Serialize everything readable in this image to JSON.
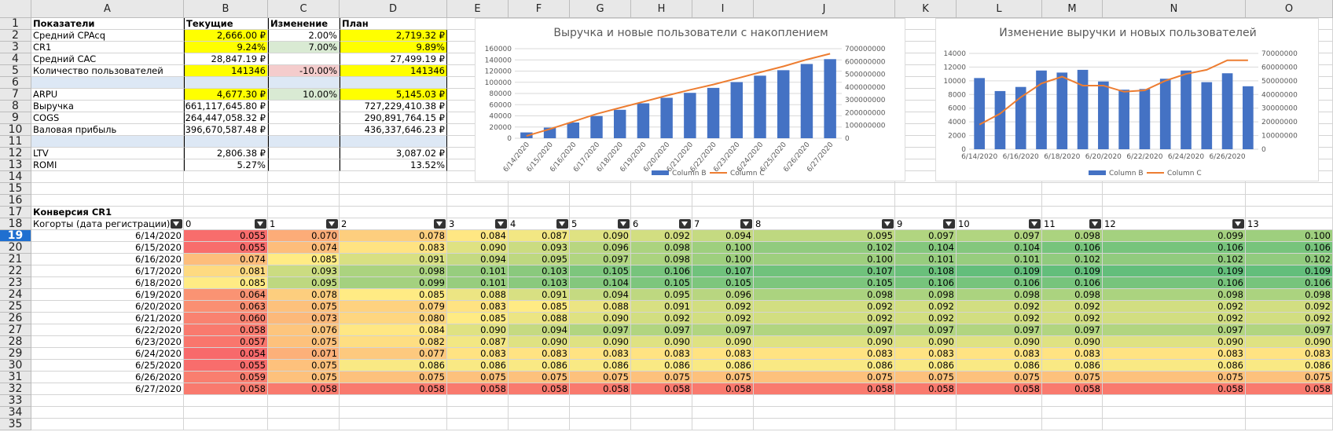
{
  "columns": [
    "A",
    "B",
    "C",
    "D",
    "E",
    "F",
    "G",
    "H",
    "I",
    "J",
    "K",
    "L",
    "M",
    "N",
    "O"
  ],
  "rows": [
    "1",
    "2",
    "3",
    "4",
    "5",
    "6",
    "7",
    "8",
    "9",
    "10",
    "11",
    "12",
    "13",
    "14",
    "15",
    "16",
    "17",
    "18",
    "19",
    "20",
    "21",
    "22",
    "23",
    "24",
    "25",
    "26",
    "27",
    "28",
    "29",
    "30",
    "31",
    "32",
    "33",
    "34",
    "35"
  ],
  "selected_row": "19",
  "summary": {
    "headers": [
      "Показатели",
      "Текущие",
      "Изменение",
      "План"
    ],
    "rows": [
      {
        "label": "Средний CPAcq",
        "current": "2,666.00 ₽",
        "change": "2.00%",
        "plan": "2,719.32 ₽"
      },
      {
        "label": "CR1",
        "current": "9.24%",
        "change": "7.00%",
        "plan": "9.89%"
      },
      {
        "label": "Средний CAC",
        "current": "28,847.19 ₽",
        "change": "",
        "plan": "27,499.19 ₽"
      },
      {
        "label": "Количество пользователей",
        "current": "141346",
        "change": "-10.00%",
        "plan": "141346"
      },
      {
        "label": "",
        "current": "",
        "change": "",
        "plan": ""
      },
      {
        "label": "ARPU",
        "current": "4,677.30 ₽",
        "change": "10.00%",
        "plan": "5,145.03 ₽"
      },
      {
        "label": "Выручка",
        "current": "661,117,645.80 ₽",
        "change": "",
        "plan": "727,229,410.38 ₽"
      },
      {
        "label": "COGS",
        "current": "264,447,058.32 ₽",
        "change": "",
        "plan": "290,891,764.15 ₽"
      },
      {
        "label": "Валовая прибыль",
        "current": "396,670,587.48 ₽",
        "change": "",
        "plan": "436,337,646.23 ₽"
      },
      {
        "label": "",
        "current": "",
        "change": "",
        "plan": ""
      },
      {
        "label": "LTV",
        "current": "2,806.38 ₽",
        "change": "",
        "plan": "3,087.02 ₽"
      },
      {
        "label": "ROMI",
        "current": "5.27%",
        "change": "",
        "plan": "13.52%"
      }
    ]
  },
  "conversion": {
    "title": "Конверсия CR1",
    "cohort_header": "Когорты (дата регистрации)",
    "period_headers": [
      "0",
      "1",
      "2",
      "3",
      "4",
      "5",
      "6",
      "7",
      "8",
      "9",
      "10",
      "11",
      "12",
      "13"
    ],
    "dates": [
      "6/14/2020",
      "6/15/2020",
      "6/16/2020",
      "6/17/2020",
      "6/18/2020",
      "6/19/2020",
      "6/20/2020",
      "6/21/2020",
      "6/22/2020",
      "6/23/2020",
      "6/24/2020",
      "6/25/2020",
      "6/26/2020",
      "6/27/2020"
    ],
    "values": [
      [
        "0.055",
        "0.070",
        "0.078",
        "0.084",
        "0.087",
        "0.090",
        "0.092",
        "0.094",
        "0.095",
        "0.097",
        "0.097",
        "0.098",
        "0.099",
        "0.100"
      ],
      [
        "0.055",
        "0.074",
        "0.083",
        "0.090",
        "0.093",
        "0.096",
        "0.098",
        "0.100",
        "0.102",
        "0.104",
        "0.104",
        "0.106",
        "0.106",
        "0.106"
      ],
      [
        "0.074",
        "0.085",
        "0.091",
        "0.094",
        "0.095",
        "0.097",
        "0.098",
        "0.100",
        "0.100",
        "0.101",
        "0.101",
        "0.102",
        "0.102",
        "0.102"
      ],
      [
        "0.081",
        "0.093",
        "0.098",
        "0.101",
        "0.103",
        "0.105",
        "0.106",
        "0.107",
        "0.107",
        "0.108",
        "0.109",
        "0.109",
        "0.109",
        "0.109"
      ],
      [
        "0.085",
        "0.095",
        "0.099",
        "0.101",
        "0.103",
        "0.104",
        "0.105",
        "0.105",
        "0.105",
        "0.106",
        "0.106",
        "0.106",
        "0.106",
        "0.106"
      ],
      [
        "0.064",
        "0.078",
        "0.085",
        "0.088",
        "0.091",
        "0.094",
        "0.095",
        "0.096",
        "0.098",
        "0.098",
        "0.098",
        "0.098",
        "0.098",
        "0.098"
      ],
      [
        "0.063",
        "0.075",
        "0.079",
        "0.083",
        "0.085",
        "0.088",
        "0.091",
        "0.092",
        "0.092",
        "0.092",
        "0.092",
        "0.092",
        "0.092",
        "0.092"
      ],
      [
        "0.060",
        "0.073",
        "0.080",
        "0.085",
        "0.088",
        "0.090",
        "0.092",
        "0.092",
        "0.092",
        "0.092",
        "0.092",
        "0.092",
        "0.092",
        "0.092"
      ],
      [
        "0.058",
        "0.076",
        "0.084",
        "0.090",
        "0.094",
        "0.097",
        "0.097",
        "0.097",
        "0.097",
        "0.097",
        "0.097",
        "0.097",
        "0.097",
        "0.097"
      ],
      [
        "0.057",
        "0.075",
        "0.082",
        "0.087",
        "0.090",
        "0.090",
        "0.090",
        "0.090",
        "0.090",
        "0.090",
        "0.090",
        "0.090",
        "0.090",
        "0.090"
      ],
      [
        "0.054",
        "0.071",
        "0.077",
        "0.083",
        "0.083",
        "0.083",
        "0.083",
        "0.083",
        "0.083",
        "0.083",
        "0.083",
        "0.083",
        "0.083",
        "0.083"
      ],
      [
        "0.055",
        "0.075",
        "0.086",
        "0.086",
        "0.086",
        "0.086",
        "0.086",
        "0.086",
        "0.086",
        "0.086",
        "0.086",
        "0.086",
        "0.086",
        "0.086"
      ],
      [
        "0.059",
        "0.075",
        "0.075",
        "0.075",
        "0.075",
        "0.075",
        "0.075",
        "0.075",
        "0.075",
        "0.075",
        "0.075",
        "0.075",
        "0.075",
        "0.075"
      ],
      [
        "0.058",
        "0.058",
        "0.058",
        "0.058",
        "0.058",
        "0.058",
        "0.058",
        "0.058",
        "0.058",
        "0.058",
        "0.058",
        "0.058",
        "0.058",
        "0.058"
      ]
    ]
  },
  "chart_data": [
    {
      "type": "bar+line",
      "title": "Выручка и новые пользователи с накоплением",
      "categories": [
        "6/14/2020",
        "6/15/2020",
        "6/16/2020",
        "6/17/2020",
        "6/18/2020",
        "6/19/2020",
        "6/20/2020",
        "6/21/2020",
        "6/22/2020",
        "6/23/2020",
        "6/24/2020",
        "6/25/2020",
        "6/26/2020",
        "6/27/2020"
      ],
      "y_left": {
        "min": 0,
        "max": 160000,
        "ticks": [
          "0",
          "20000",
          "40000",
          "60000",
          "80000",
          "100000",
          "120000",
          "140000",
          "160000"
        ]
      },
      "y_right": {
        "min": 0,
        "max": 700000000,
        "ticks": [
          "0",
          "100000000",
          "200000000",
          "300000000",
          "400000000",
          "500000000",
          "600000000",
          "700000000"
        ]
      },
      "series": [
        {
          "name": "Column B",
          "kind": "bar",
          "axis": "left",
          "color": "#4472c4",
          "values": [
            10400,
            19000,
            28100,
            39600,
            50800,
            62400,
            72300,
            81100,
            90000,
            100300,
            111800,
            121600,
            132700,
            141346
          ]
        },
        {
          "name": "Column C",
          "kind": "line",
          "axis": "right",
          "color": "#ed7d31",
          "values": [
            18000000,
            72000000,
            130000000,
            190000000,
            238000000,
            285000000,
            333000000,
            378000000,
            420000000,
            467000000,
            515000000,
            562000000,
            615000000,
            661000000
          ]
        }
      ],
      "legend": "bottom"
    },
    {
      "type": "bar+line",
      "title": "Изменение выручки и новых пользователей",
      "categories": [
        "6/14/2020",
        "6/15/2020",
        "6/16/2020",
        "6/17/2020",
        "6/18/2020",
        "6/19/2020",
        "6/20/2020",
        "6/21/2020",
        "6/22/2020",
        "6/23/2020",
        "6/24/2020",
        "6/25/2020",
        "6/26/2020",
        "6/27/2020"
      ],
      "x_tick_labels": [
        "6/14/2020",
        "6/16/2020",
        "6/18/2020",
        "6/20/2020",
        "6/22/2020",
        "6/24/2020",
        "6/26/2020"
      ],
      "y_left": {
        "min": 0,
        "max": 14000,
        "ticks": [
          "0",
          "2000",
          "4000",
          "6000",
          "8000",
          "10000",
          "12000",
          "14000"
        ]
      },
      "y_right": {
        "min": 0,
        "max": 70000000,
        "ticks": [
          "0",
          "10000000",
          "20000000",
          "30000000",
          "40000000",
          "50000000",
          "60000000",
          "70000000"
        ]
      },
      "series": [
        {
          "name": "Column B",
          "kind": "bar",
          "axis": "left",
          "color": "#4472c4",
          "values": [
            10400,
            8500,
            9100,
            11500,
            11200,
            11600,
            9900,
            8700,
            8800,
            10300,
            11500,
            9800,
            11100,
            9200
          ]
        },
        {
          "name": "Column C",
          "kind": "line",
          "axis": "right",
          "color": "#ed7d31",
          "values": [
            18000000,
            26000000,
            38000000,
            48000000,
            53000000,
            46500000,
            46500000,
            42000000,
            43000000,
            50000000,
            55000000,
            58000000,
            65000000,
            65000000
          ]
        }
      ],
      "legend": "bottom"
    }
  ]
}
